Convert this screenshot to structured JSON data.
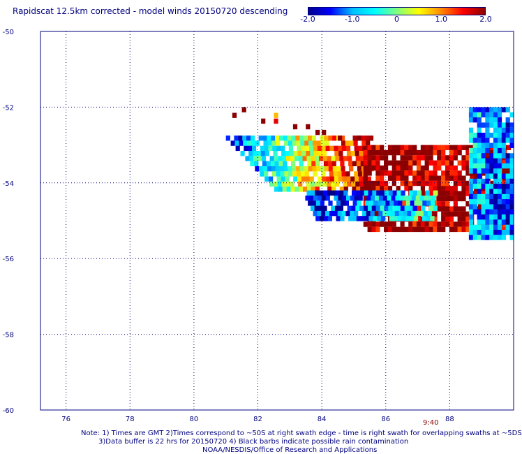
{
  "title": "Rapidscat 12.5km corrected - model winds 20150720 descending",
  "colorbar": {
    "labels": [
      "-2.0",
      "-1.0",
      "0",
      "1.0",
      "2.0"
    ],
    "values": [
      -2.0,
      -1.0,
      0.0,
      1.0,
      2.0
    ],
    "colors": [
      "#00008b",
      "#0000ff",
      "#00bfff",
      "#00ffff",
      "#7fff7f",
      "#ffff00",
      "#ff8c00",
      "#ff0000",
      "#8b0000"
    ]
  },
  "chart_data": {
    "type": "heatmap",
    "title": "Rapidscat 12.5km corrected - model winds 20150720 descending",
    "x_ticks": [
      "76",
      "78",
      "80",
      "82",
      "84",
      "86",
      "88"
    ],
    "x_values": [
      76,
      78,
      80,
      82,
      84,
      86,
      88
    ],
    "y_ticks": [
      "-50",
      "-52",
      "-54",
      "-56",
      "-58",
      "-60"
    ],
    "y_values": [
      -50,
      -52,
      -54,
      -56,
      -58,
      -60
    ],
    "xlim": [
      75.2,
      90.0
    ],
    "ylim": [
      -60.0,
      -50.0
    ],
    "grid": true,
    "value_range": [
      -2.0,
      2.0
    ],
    "annotation": "9:40",
    "sparse_cells": [
      {
        "lon": 81.2,
        "lat": -52.15,
        "v": 2.0
      },
      {
        "lon": 81.5,
        "lat": -52.0,
        "v": 2.0
      },
      {
        "lon": 82.1,
        "lat": -52.3,
        "v": 2.0
      },
      {
        "lon": 82.5,
        "lat": -52.15,
        "v": 0.8
      },
      {
        "lon": 82.5,
        "lat": -52.3,
        "v": 1.6
      },
      {
        "lon": 83.1,
        "lat": -52.45,
        "v": 2.0
      },
      {
        "lon": 83.5,
        "lat": -52.45,
        "v": 2.0
      },
      {
        "lon": 83.8,
        "lat": -52.6,
        "v": 2.0
      },
      {
        "lon": 84.0,
        "lat": -52.6,
        "v": 2.0
      },
      {
        "lon": 84.5,
        "lat": -52.75,
        "v": 2.0
      },
      {
        "lon": 85.1,
        "lat": -52.75,
        "v": 2.0
      }
    ],
    "swaths": [
      {
        "lat_start": -52.75,
        "lat_end": -54.1,
        "lon_start": 81.0,
        "lon_end": 85.5,
        "slope": 0.28,
        "v_left": -1.5,
        "v_right": 2.0
      },
      {
        "lat_start": -53.0,
        "lat_end": -55.2,
        "lon_start": 85.3,
        "lon_end": 89.9,
        "slope": 0.0,
        "v_left": 2.0,
        "v_right": 2.0
      },
      {
        "lat_start": -54.2,
        "lat_end": -55.0,
        "lon_start": 83.4,
        "lon_end": 87.5,
        "slope": 0.15,
        "v_left": -1.8,
        "v_right": -0.5
      },
      {
        "lat_start": -52.0,
        "lat_end": -55.5,
        "lon_start": 88.6,
        "lon_end": 90.0,
        "slope": 0.0,
        "v_left": -0.8,
        "v_right": -1.5
      }
    ]
  },
  "notes": {
    "line1": "Note: 1) Times are GMT 2)Times correspond to ~50S at right swath edge - time is right swath for overlapping swaths at ~5DS",
    "line2": "3)Data buffer is 22 hrs for 20150720 4) Black barbs indicate possible rain contamination",
    "line3": "NOAA/NESDIS/Office of Research and Applications"
  },
  "time_label": "9:40"
}
